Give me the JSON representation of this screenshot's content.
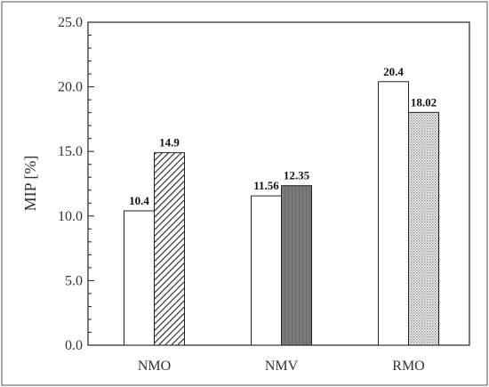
{
  "chart_data": {
    "type": "bar",
    "title": "",
    "xlabel": "",
    "ylabel": "MIP [%]",
    "ylim": [
      0,
      25
    ],
    "yticks": [
      "0.0",
      "5.0",
      "10.0",
      "15.0",
      "20.0",
      "25.0"
    ],
    "grid": false,
    "legend": "none",
    "categories": [
      "NMO",
      "NMV",
      "RMO"
    ],
    "groups": [
      {
        "category": "NMO",
        "bars": [
          {
            "value": 10.4,
            "label": "10.4",
            "fill": "open"
          },
          {
            "value": 14.9,
            "label": "14.9",
            "fill": "diagonal-hatch"
          }
        ]
      },
      {
        "category": "NMV",
        "bars": [
          {
            "value": 11.56,
            "label": "11.56",
            "fill": "open"
          },
          {
            "value": 12.35,
            "label": "12.35",
            "fill": "dark-gray"
          }
        ]
      },
      {
        "category": "RMO",
        "bars": [
          {
            "value": 20.4,
            "label": "20.4",
            "fill": "open"
          },
          {
            "value": 18.02,
            "label": "18.02",
            "fill": "fine-dots"
          }
        ]
      }
    ],
    "colors": {
      "outline": "#222222",
      "dark_fill": "#707070",
      "hatch": "#222222",
      "dots": "#9a9a9a"
    }
  }
}
